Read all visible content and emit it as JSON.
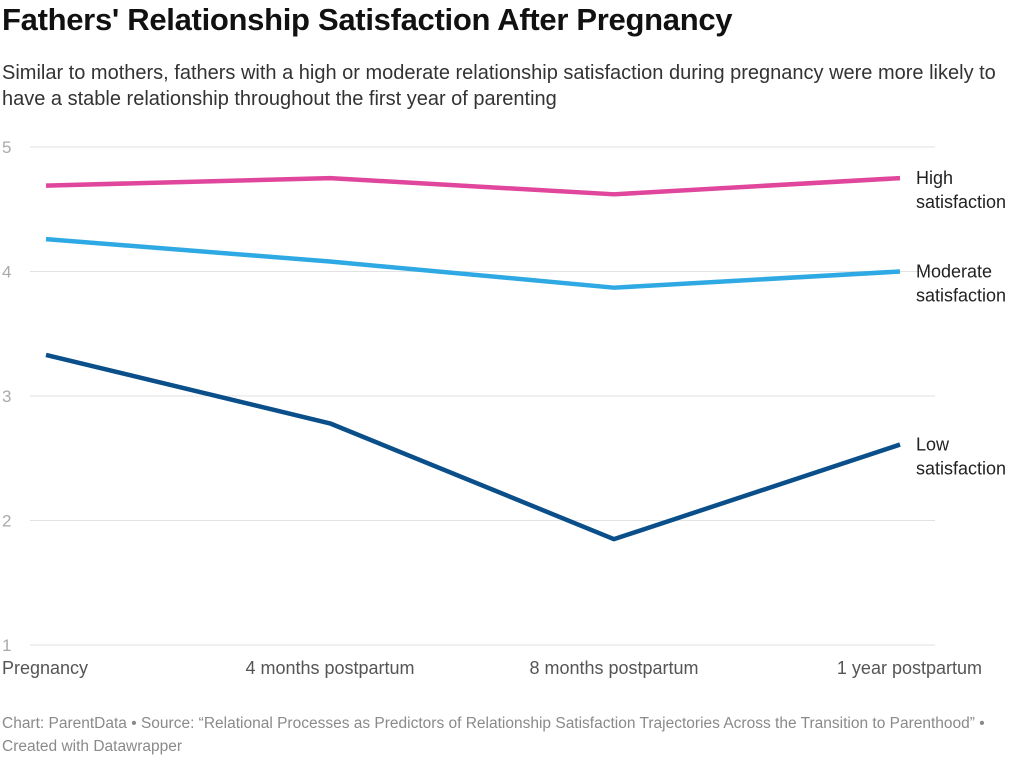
{
  "title": "Fathers' Relationship Satisfaction After Pregnancy",
  "subtitle": "Similar to mothers, fathers with a high or moderate relationship satisfaction during pregnancy were more likely to have a stable relationship throughout the first year of parenting",
  "footer": "Chart: ParentData • Source: “Relational Processes as Predictors of Relationship Satisfaction Trajectories Across the Transition to Parenthood” • Created with Datawrapper",
  "chart_data": {
    "type": "line",
    "categories": [
      "Pregnancy",
      "4 months postpartum",
      "8 months postpartum",
      "1 year postpartum"
    ],
    "ylim": [
      1,
      5
    ],
    "yticks": [
      "1",
      "2",
      "3",
      "4",
      "5"
    ],
    "grid": true,
    "series": [
      {
        "name": "High satisfaction",
        "label_lines": [
          "High",
          "satisfaction"
        ],
        "color": "#e0469b",
        "values": [
          4.69,
          4.75,
          4.62,
          4.75
        ]
      },
      {
        "name": "Moderate satisfaction",
        "label_lines": [
          "Moderate",
          "satisfaction"
        ],
        "color": "#2fa9e4",
        "values": [
          4.26,
          4.08,
          3.87,
          4.0
        ]
      },
      {
        "name": "Low satisfaction",
        "label_lines": [
          "Low",
          "satisfaction"
        ],
        "color": "#0a4f8a",
        "values": [
          3.33,
          2.78,
          1.85,
          2.61
        ]
      }
    ]
  }
}
